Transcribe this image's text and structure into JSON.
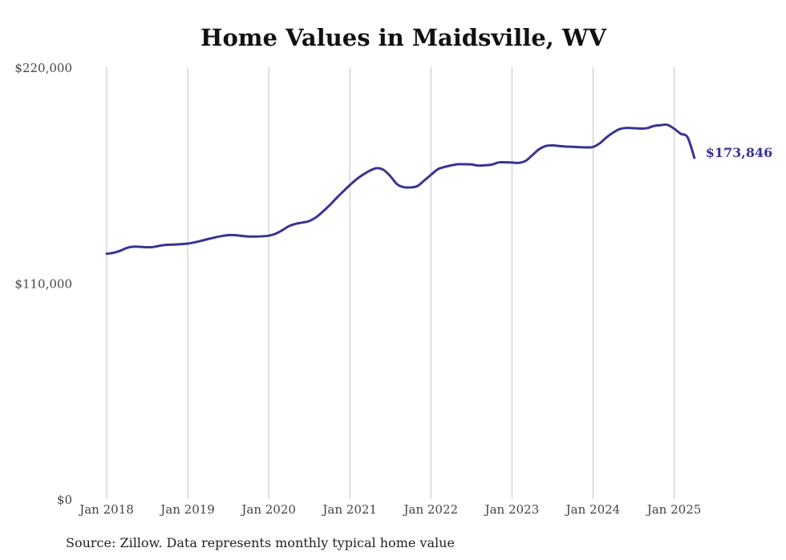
{
  "title": "Home Values in Maidsville, WV",
  "source": "Source: Zillow. Data represents monthly typical home value",
  "colors": {
    "line": "#3a3394",
    "grid": "#c4c4c4",
    "text": "#444444"
  },
  "chart_data": {
    "type": "line",
    "title": "Home Values in Maidsville, WV",
    "xlabel": "",
    "ylabel": "",
    "ylim": [
      0,
      220000
    ],
    "yticks": [
      0,
      110000,
      220000
    ],
    "ytick_labels": [
      "$0",
      "$110,000",
      "$220,000"
    ],
    "xticks": [
      "2018-01",
      "2019-01",
      "2020-01",
      "2021-01",
      "2022-01",
      "2023-01",
      "2024-01",
      "2025-01"
    ],
    "xtick_labels": [
      "Jan 2018",
      "Jan 2019",
      "Jan 2020",
      "Jan 2021",
      "Jan 2022",
      "Jan 2023",
      "Jan 2024",
      "Jan 2025"
    ],
    "grid": "vertical",
    "end_label": "$173,846",
    "series": [
      {
        "x": [
          "2018-01",
          "2018-02",
          "2018-03",
          "2018-04",
          "2018-05",
          "2018-06",
          "2018-07",
          "2018-08",
          "2018-09",
          "2018-10",
          "2018-11",
          "2018-12",
          "2019-01",
          "2019-02",
          "2019-03",
          "2019-04",
          "2019-05",
          "2019-06",
          "2019-07",
          "2019-08",
          "2019-09",
          "2019-10",
          "2019-11",
          "2019-12",
          "2020-01",
          "2020-02",
          "2020-03",
          "2020-04",
          "2020-05",
          "2020-06",
          "2020-07",
          "2020-08",
          "2020-09",
          "2020-10",
          "2020-11",
          "2020-12",
          "2021-01",
          "2021-02",
          "2021-03",
          "2021-04",
          "2021-05",
          "2021-06",
          "2021-07",
          "2021-08",
          "2021-09",
          "2021-10",
          "2021-11",
          "2021-12",
          "2022-01",
          "2022-02",
          "2022-03",
          "2022-04",
          "2022-05",
          "2022-06",
          "2022-07",
          "2022-08",
          "2022-09",
          "2022-10",
          "2022-11",
          "2022-12",
          "2023-01",
          "2023-02",
          "2023-03",
          "2023-04",
          "2023-05",
          "2023-06",
          "2023-07",
          "2023-08",
          "2023-09",
          "2023-10",
          "2023-11",
          "2023-12",
          "2024-01",
          "2024-02",
          "2024-03",
          "2024-04",
          "2024-05",
          "2024-06",
          "2024-07",
          "2024-08",
          "2024-09",
          "2024-10",
          "2024-11",
          "2024-12",
          "2025-01",
          "2025-02",
          "2025-03",
          "2025-04"
        ],
        "values": [
          125000,
          125500,
          126500,
          128000,
          128600,
          128500,
          128300,
          128500,
          129200,
          129600,
          129700,
          129900,
          130200,
          130800,
          131600,
          132500,
          133300,
          134000,
          134500,
          134500,
          134100,
          133800,
          133800,
          133900,
          134200,
          135200,
          137000,
          139100,
          140300,
          140900,
          141700,
          143600,
          146500,
          149700,
          153300,
          156700,
          160000,
          163000,
          165400,
          167400,
          168600,
          167700,
          164500,
          160400,
          158900,
          158800,
          159500,
          162300,
          165200,
          168000,
          169200,
          170000,
          170600,
          170600,
          170500,
          169900,
          170100,
          170400,
          171500,
          171600,
          171500,
          171300,
          172300,
          175200,
          178200,
          179900,
          180200,
          179900,
          179600,
          179500,
          179300,
          179200,
          179400,
          181300,
          184300,
          186800,
          188600,
          189100,
          189000,
          188800,
          189000,
          190100,
          190500,
          190700,
          188700,
          186100,
          184300,
          173846
        ],
        "values_note": ""
      }
    ]
  }
}
